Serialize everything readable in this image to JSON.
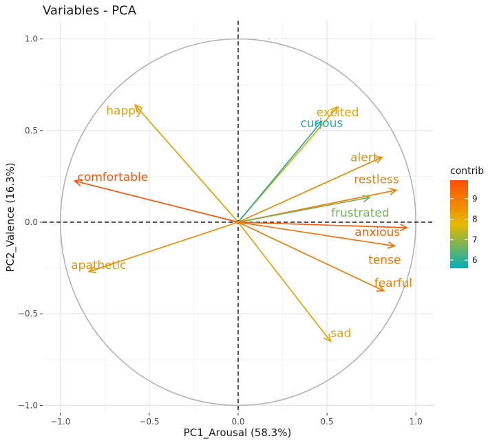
{
  "chart_data": {
    "type": "scatter",
    "title": "Variables - PCA",
    "xlabel": "PC1_Arousal (58.3%)",
    "ylabel": "PC2_Valence (16.3%)",
    "xlim": [
      -1.1,
      1.1
    ],
    "ylim": [
      -1.04,
      1.1
    ],
    "xticks": [
      -1.0,
      -0.5,
      0.0,
      0.5,
      1.0
    ],
    "xtick_labels": [
      "−1.0",
      "−0.5",
      "0.0",
      "0.5",
      "1.0"
    ],
    "yticks": [
      -1.0,
      -0.5,
      0.0,
      0.5,
      1.0
    ],
    "ytick_labels": [
      "−1.0",
      "−0.5",
      "0.0",
      "0.5",
      "1.0"
    ],
    "grid": true,
    "correlation_circle": true,
    "variables": [
      {
        "name": "excited",
        "x": 0.56,
        "y": 0.63,
        "contrib": 8.1
      },
      {
        "name": "curious",
        "x": 0.47,
        "y": 0.55,
        "contrib": 5.9
      },
      {
        "name": "happy",
        "x": -0.58,
        "y": 0.64,
        "contrib": 8.3
      },
      {
        "name": "comfortable",
        "x": -0.92,
        "y": 0.225,
        "contrib": 9.8
      },
      {
        "name": "alert",
        "x": 0.81,
        "y": 0.355,
        "contrib": 8.7
      },
      {
        "name": "restless",
        "x": 0.89,
        "y": 0.175,
        "contrib": 8.9
      },
      {
        "name": "frustrated",
        "x": 0.74,
        "y": 0.135,
        "contrib": 6.7
      },
      {
        "name": "anxious",
        "x": 0.95,
        "y": -0.03,
        "contrib": 9.6
      },
      {
        "name": "tense",
        "x": 0.88,
        "y": -0.13,
        "contrib": 9.2
      },
      {
        "name": "fearful",
        "x": 0.82,
        "y": -0.375,
        "contrib": 9.0
      },
      {
        "name": "sad",
        "x": 0.52,
        "y": -0.65,
        "contrib": 8.2
      },
      {
        "name": "apathetic",
        "x": -0.84,
        "y": -0.27,
        "contrib": 8.6
      }
    ],
    "legend": {
      "title": "contrib",
      "position": "right",
      "min": 5.6,
      "max": 9.9,
      "ticks": [
        6,
        7,
        8,
        9
      ],
      "colors": [
        "#00AFBB",
        "#E7B800",
        "#FC4E07"
      ]
    }
  }
}
